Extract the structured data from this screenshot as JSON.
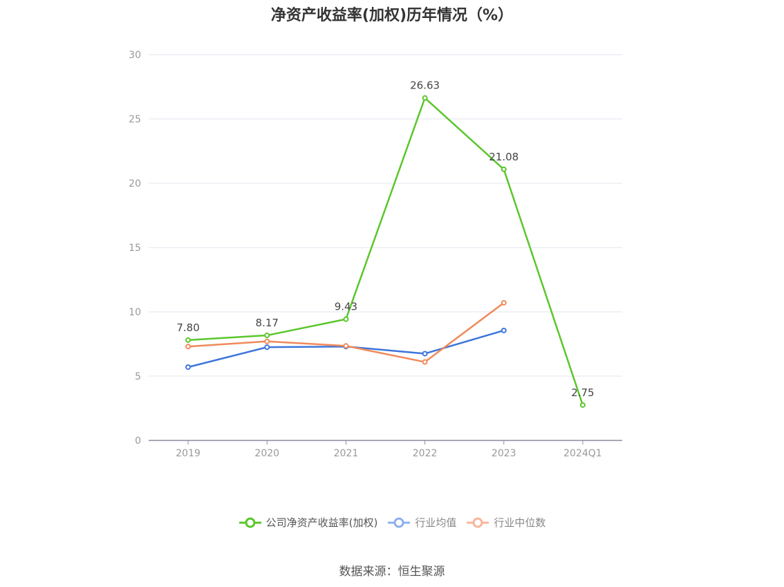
{
  "title": "净资产收益率(加权)历年情况（%）",
  "source": "数据来源：恒生聚源",
  "chart_data": {
    "type": "line",
    "title": "净资产收益率(加权)历年情况（%）",
    "categories": [
      "2019",
      "2020",
      "2021",
      "2022",
      "2023",
      "2024Q1"
    ],
    "yticks": [
      "0",
      "5",
      "10",
      "15",
      "20",
      "25",
      "30"
    ],
    "ylim": [
      0,
      30
    ],
    "grid": true,
    "legend_position": "bottom",
    "series": [
      {
        "name": "公司净资产收益率(加权)",
        "color": "#5ac62b",
        "values": [
          7.8,
          8.17,
          9.43,
          26.63,
          21.08,
          2.75
        ],
        "labels": [
          "7.80",
          "8.17",
          "9.43",
          "26.63",
          "21.08",
          "2.75"
        ]
      },
      {
        "name": "行业均值",
        "color": "#3c75db",
        "values": [
          5.7,
          7.25,
          7.3,
          6.75,
          8.55,
          null
        ]
      },
      {
        "name": "行业中位数",
        "color": "#f0895a",
        "values": [
          7.3,
          7.7,
          7.35,
          6.1,
          10.7,
          null
        ]
      }
    ]
  },
  "legend": [
    {
      "label": "公司净资产收益率(加权)",
      "icon": "circle-line-icon",
      "color": "#5ac62b"
    },
    {
      "label": "行业均值",
      "icon": "circle-line-icon",
      "color": "#8cb0ef"
    },
    {
      "label": "行业中位数",
      "icon": "circle-line-icon",
      "color": "#f8b69a"
    }
  ]
}
